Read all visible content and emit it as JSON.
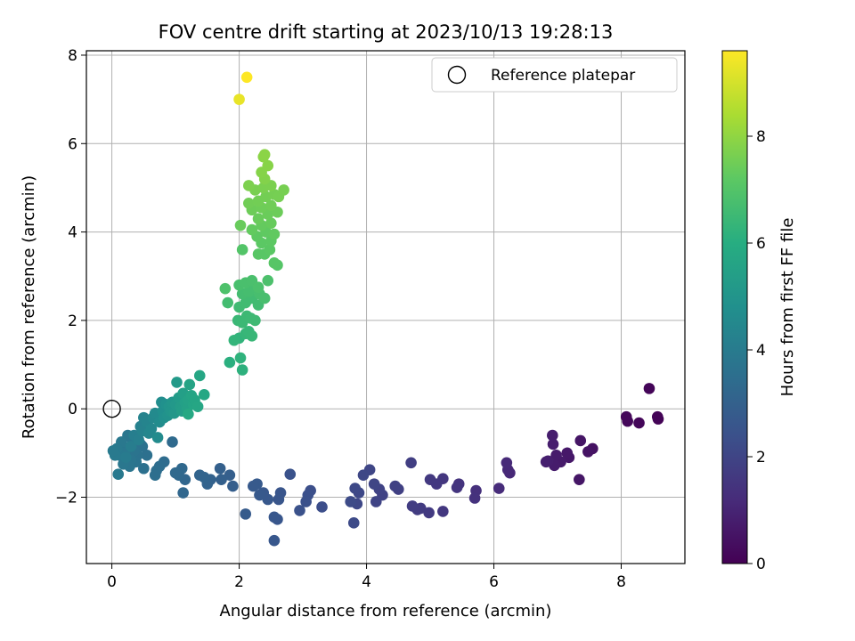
{
  "chart_data": {
    "type": "scatter",
    "title": "FOV centre drift starting at 2023/10/13 19:28:13",
    "xlabel": "Angular distance from reference (arcmin)",
    "ylabel": "Rotation from reference (arcmin)",
    "xlim": [
      -0.4,
      9.0
    ],
    "ylim": [
      -3.5,
      8.1
    ],
    "xticks": [
      0,
      2,
      4,
      6,
      8
    ],
    "yticks": [
      -2,
      0,
      2,
      4,
      6,
      8
    ],
    "grid": true,
    "legend": {
      "placement": "top-right",
      "entries": [
        "Reference platepar"
      ]
    },
    "reference_point": {
      "name": "Reference platepar",
      "x": 0,
      "y": 0
    },
    "colorbar": {
      "label": "Hours from first FF file",
      "colormap": "viridis",
      "range": [
        0,
        9.6
      ],
      "ticks": [
        0,
        2,
        4,
        6,
        8
      ]
    },
    "colormap_stops": [
      "#440154",
      "#472c7a",
      "#3b518b",
      "#2c718e",
      "#21908d",
      "#27ad81",
      "#5cc863",
      "#aadc32",
      "#fde725"
    ],
    "series": [
      {
        "points": [
          [
            8.58,
            -0.23,
            0.05
          ],
          [
            8.57,
            -0.18,
            0.08
          ],
          [
            8.44,
            0.46,
            0.12
          ],
          [
            8.28,
            -0.32,
            0.15
          ],
          [
            8.1,
            -0.28,
            0.18
          ],
          [
            8.08,
            -0.18,
            0.2
          ],
          [
            7.55,
            -0.9,
            0.45
          ],
          [
            7.48,
            -0.97,
            0.5
          ],
          [
            7.36,
            -0.72,
            0.55
          ],
          [
            7.34,
            -1.6,
            0.58
          ],
          [
            7.18,
            -1.1,
            0.62
          ],
          [
            7.15,
            -1.0,
            0.65
          ],
          [
            7.05,
            -1.2,
            0.7
          ],
          [
            6.98,
            -1.05,
            0.73
          ],
          [
            6.95,
            -1.28,
            0.76
          ],
          [
            6.93,
            -0.8,
            0.78
          ],
          [
            6.92,
            -0.6,
            0.8
          ],
          [
            6.85,
            -1.18,
            0.83
          ],
          [
            6.82,
            -1.2,
            0.85
          ],
          [
            6.25,
            -1.45,
            1.1
          ],
          [
            6.22,
            -1.38,
            1.12
          ],
          [
            6.2,
            -1.22,
            1.15
          ],
          [
            6.08,
            -1.8,
            1.2
          ],
          [
            5.72,
            -1.85,
            1.35
          ],
          [
            5.7,
            -2.02,
            1.38
          ],
          [
            5.45,
            -1.7,
            1.45
          ],
          [
            5.42,
            -1.78,
            1.48
          ],
          [
            5.2,
            -1.58,
            1.55
          ],
          [
            5.2,
            -2.32,
            1.57
          ],
          [
            5.1,
            -1.7,
            1.6
          ],
          [
            5.0,
            -1.6,
            1.63
          ],
          [
            4.98,
            -2.35,
            1.66
          ],
          [
            4.85,
            -2.25,
            1.7
          ],
          [
            4.8,
            -2.28,
            1.72
          ],
          [
            4.72,
            -2.2,
            1.75
          ],
          [
            4.7,
            -1.22,
            1.78
          ],
          [
            4.5,
            -1.82,
            1.85
          ],
          [
            4.45,
            -1.75,
            1.88
          ],
          [
            4.25,
            -1.95,
            1.92
          ],
          [
            4.2,
            -1.82,
            1.95
          ],
          [
            4.15,
            -2.1,
            1.98
          ],
          [
            4.12,
            -1.7,
            2.0
          ],
          [
            4.05,
            -1.38,
            2.05
          ],
          [
            3.95,
            -1.5,
            2.08
          ],
          [
            3.88,
            -1.9,
            2.1
          ],
          [
            3.85,
            -2.15,
            2.12
          ],
          [
            3.82,
            -1.8,
            2.15
          ],
          [
            3.8,
            -2.58,
            2.18
          ],
          [
            3.75,
            -2.1,
            2.2
          ],
          [
            3.3,
            -2.22,
            2.3
          ],
          [
            3.12,
            -1.85,
            2.35
          ],
          [
            3.08,
            -1.95,
            2.37
          ],
          [
            3.05,
            -2.1,
            2.4
          ],
          [
            2.95,
            -2.3,
            2.42
          ],
          [
            2.8,
            -1.48,
            2.45
          ],
          [
            2.65,
            -1.9,
            2.55
          ],
          [
            2.62,
            -2.05,
            2.57
          ],
          [
            2.6,
            -2.5,
            2.6
          ],
          [
            2.55,
            -2.45,
            2.62
          ],
          [
            2.55,
            -2.98,
            2.64
          ],
          [
            2.45,
            -2.05,
            2.66
          ],
          [
            2.38,
            -1.9,
            2.68
          ],
          [
            2.32,
            -1.95,
            2.7
          ],
          [
            2.28,
            -1.7,
            2.72
          ],
          [
            2.22,
            -1.75,
            2.74
          ],
          [
            2.1,
            -2.38,
            2.78
          ],
          [
            1.9,
            -1.75,
            2.9
          ],
          [
            1.85,
            -1.5,
            2.92
          ],
          [
            1.72,
            -1.6,
            2.95
          ],
          [
            1.7,
            -1.35,
            2.98
          ],
          [
            1.55,
            -1.6,
            3.05
          ],
          [
            1.5,
            -1.7,
            3.08
          ],
          [
            1.45,
            -1.55,
            3.1
          ],
          [
            1.38,
            -1.5,
            3.12
          ],
          [
            1.15,
            -1.6,
            3.2
          ],
          [
            1.12,
            -1.9,
            3.22
          ],
          [
            1.1,
            -1.35,
            3.25
          ],
          [
            1.05,
            -1.5,
            3.27
          ],
          [
            1.0,
            -1.45,
            3.3
          ],
          [
            0.95,
            -0.75,
            3.35
          ],
          [
            0.82,
            -1.2,
            3.4
          ],
          [
            0.75,
            -1.3,
            3.45
          ],
          [
            0.7,
            -1.4,
            3.48
          ],
          [
            0.68,
            -1.5,
            3.5
          ],
          [
            0.55,
            -1.05,
            3.55
          ],
          [
            0.5,
            -1.35,
            3.58
          ],
          [
            0.48,
            -0.85,
            3.6
          ],
          [
            0.45,
            -0.8,
            3.62
          ],
          [
            0.4,
            -1.05,
            3.65
          ],
          [
            0.38,
            -1.2,
            3.68
          ],
          [
            0.35,
            -0.95,
            3.7
          ],
          [
            0.32,
            -0.7,
            3.72
          ],
          [
            0.3,
            -1.15,
            3.74
          ],
          [
            0.28,
            -1.3,
            3.76
          ],
          [
            0.25,
            -0.6,
            3.78
          ],
          [
            0.22,
            -0.9,
            3.8
          ],
          [
            0.2,
            -1.0,
            3.82
          ],
          [
            0.18,
            -1.25,
            3.84
          ],
          [
            0.15,
            -0.75,
            3.86
          ],
          [
            0.12,
            -1.05,
            3.88
          ],
          [
            0.1,
            -1.48,
            3.9
          ],
          [
            0.08,
            -0.9,
            3.92
          ],
          [
            0.05,
            -1.05,
            3.94
          ],
          [
            0.02,
            -0.95,
            3.96
          ],
          [
            0.22,
            -1.1,
            4.0
          ],
          [
            0.3,
            -0.85,
            4.05
          ],
          [
            0.35,
            -0.6,
            4.1
          ],
          [
            0.42,
            -0.7,
            4.15
          ],
          [
            0.45,
            -0.4,
            4.2
          ],
          [
            0.48,
            -0.5,
            4.25
          ],
          [
            0.5,
            -0.2,
            4.3
          ],
          [
            0.55,
            -0.3,
            4.35
          ],
          [
            0.58,
            -0.55,
            4.4
          ],
          [
            0.62,
            -0.45,
            4.45
          ],
          [
            0.65,
            -0.2,
            4.5
          ],
          [
            0.68,
            -0.1,
            4.55
          ],
          [
            0.72,
            -0.65,
            4.6
          ],
          [
            0.75,
            -0.3,
            4.65
          ],
          [
            0.78,
            0.15,
            4.7
          ],
          [
            0.8,
            -0.05,
            4.75
          ],
          [
            0.82,
            -0.2,
            4.8
          ],
          [
            0.85,
            0.1,
            4.85
          ],
          [
            0.88,
            -0.15,
            4.9
          ],
          [
            0.9,
            0.05,
            4.95
          ],
          [
            0.92,
            -0.05,
            5.0
          ],
          [
            0.95,
            0.15,
            5.05
          ],
          [
            0.98,
            -0.1,
            5.1
          ],
          [
            1.0,
            0.1,
            5.15
          ],
          [
            1.02,
            0.6,
            5.2
          ],
          [
            1.05,
            0.25,
            5.25
          ],
          [
            1.08,
            0.05,
            5.3
          ],
          [
            1.1,
            -0.05,
            5.35
          ],
          [
            1.12,
            0.35,
            5.4
          ],
          [
            1.15,
            0.15,
            5.45
          ],
          [
            1.18,
            0.0,
            5.5
          ],
          [
            1.2,
            0.2,
            5.55
          ],
          [
            1.22,
            0.55,
            5.6
          ],
          [
            1.25,
            0.3,
            5.62
          ],
          [
            1.28,
            0.1,
            5.65
          ],
          [
            1.3,
            0.2,
            5.68
          ],
          [
            1.35,
            0.05,
            5.7
          ],
          [
            1.38,
            0.75,
            5.72
          ],
          [
            1.45,
            0.32,
            5.75
          ],
          [
            1.2,
            -0.12,
            5.78
          ],
          [
            1.85,
            1.05,
            6.1
          ],
          [
            2.05,
            0.88,
            6.15
          ],
          [
            2.02,
            1.15,
            6.2
          ],
          [
            2.0,
            1.6,
            6.25
          ],
          [
            1.92,
            1.55,
            6.3
          ],
          [
            2.1,
            1.7,
            6.35
          ],
          [
            2.15,
            1.75,
            6.38
          ],
          [
            2.2,
            1.65,
            6.4
          ],
          [
            1.98,
            2.0,
            6.45
          ],
          [
            2.05,
            1.95,
            6.48
          ],
          [
            2.12,
            2.1,
            6.5
          ],
          [
            2.18,
            2.05,
            6.52
          ],
          [
            2.25,
            2.0,
            6.55
          ],
          [
            2.0,
            2.3,
            6.58
          ],
          [
            2.1,
            2.4,
            6.6
          ],
          [
            2.2,
            2.5,
            6.62
          ],
          [
            2.3,
            2.35,
            6.64
          ],
          [
            1.82,
            2.4,
            6.66
          ],
          [
            2.05,
            2.6,
            6.68
          ],
          [
            2.15,
            2.65,
            6.7
          ],
          [
            2.25,
            2.75,
            6.72
          ],
          [
            2.32,
            2.6,
            6.74
          ],
          [
            2.4,
            2.5,
            6.76
          ],
          [
            2.0,
            2.8,
            6.78
          ],
          [
            2.1,
            2.85,
            6.8
          ],
          [
            2.2,
            2.9,
            6.82
          ],
          [
            2.3,
            2.75,
            6.84
          ],
          [
            2.45,
            2.9,
            6.86
          ],
          [
            1.78,
            2.72,
            6.88
          ],
          [
            2.05,
            3.6,
            7.0
          ],
          [
            2.6,
            3.25,
            7.05
          ],
          [
            2.55,
            3.3,
            7.08
          ],
          [
            2.4,
            3.5,
            7.1
          ],
          [
            2.3,
            3.5,
            7.12
          ],
          [
            2.48,
            3.6,
            7.15
          ],
          [
            2.35,
            3.75,
            7.18
          ],
          [
            2.5,
            3.8,
            7.2
          ],
          [
            2.28,
            3.9,
            7.22
          ],
          [
            2.42,
            4.0,
            7.25
          ],
          [
            2.55,
            3.95,
            7.28
          ],
          [
            2.2,
            4.05,
            7.3
          ],
          [
            2.35,
            4.15,
            7.33
          ],
          [
            2.5,
            4.2,
            7.36
          ],
          [
            2.02,
            4.15,
            7.38
          ],
          [
            2.3,
            4.3,
            7.4
          ],
          [
            2.45,
            4.4,
            7.42
          ],
          [
            2.6,
            4.45,
            7.44
          ],
          [
            2.2,
            4.5,
            7.46
          ],
          [
            2.35,
            4.55,
            7.48
          ],
          [
            2.5,
            4.6,
            7.5
          ],
          [
            2.15,
            4.65,
            7.52
          ],
          [
            2.3,
            4.7,
            7.54
          ],
          [
            2.42,
            4.8,
            7.56
          ],
          [
            2.55,
            4.85,
            7.58
          ],
          [
            2.62,
            4.8,
            7.6
          ],
          [
            2.7,
            4.95,
            7.62
          ],
          [
            2.25,
            4.95,
            7.64
          ],
          [
            2.38,
            5.0,
            7.66
          ],
          [
            2.5,
            5.05,
            7.68
          ],
          [
            2.15,
            5.05,
            7.7
          ],
          [
            2.4,
            5.2,
            7.8
          ],
          [
            2.35,
            5.35,
            7.83
          ],
          [
            2.45,
            5.5,
            7.86
          ],
          [
            2.38,
            5.7,
            7.9
          ],
          [
            2.4,
            5.75,
            7.92
          ],
          [
            2.0,
            7.0,
            9.3
          ],
          [
            2.12,
            7.5,
            9.6
          ]
        ]
      }
    ]
  }
}
